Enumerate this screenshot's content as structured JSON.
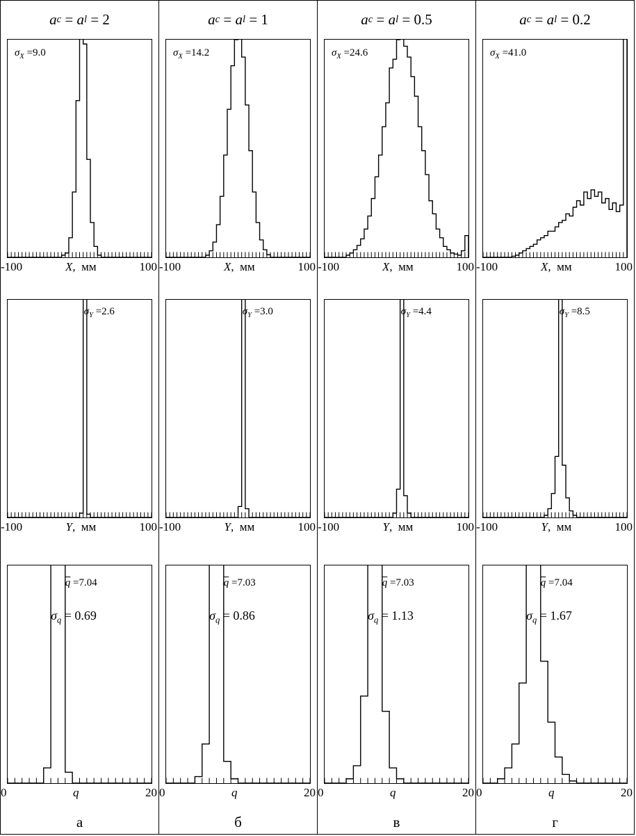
{
  "columns": [
    {
      "header": {
        "var1": "a",
        "sub1": "c",
        "eq": " = ",
        "var2": "a",
        "sub2": "l",
        "rhs": " = 2"
      },
      "letter": "а"
    },
    {
      "header": {
        "var1": "a",
        "sub1": "c",
        "eq": " = ",
        "var2": "a",
        "sub2": "l",
        "rhs": " = 1"
      },
      "letter": "б"
    },
    {
      "header": {
        "var1": "a",
        "sub1": "c",
        "eq": " = ",
        "var2": "a",
        "sub2": "l",
        "rhs": " = 0.5"
      },
      "letter": "в"
    },
    {
      "header": {
        "var1": "a",
        "sub1": "c",
        "eq": " = ",
        "var2": "a",
        "sub2": "l",
        "rhs": " = 0.2"
      },
      "letter": "г"
    }
  ],
  "chart_data": [
    {
      "type": "histogram",
      "row": 1,
      "col": 1,
      "x_range": [
        -100,
        100
      ],
      "bin_width": 5,
      "y_units": "relative (peak clipped at frame top)",
      "counts": [
        0,
        0,
        0,
        0,
        0,
        0,
        0,
        0,
        0,
        0,
        0,
        0,
        0,
        0,
        0,
        0.01,
        0.02,
        0.09,
        0.3,
        0.72,
        1.04,
        0.98,
        0.45,
        0.16,
        0.05,
        0.01,
        0,
        0,
        0,
        0,
        0,
        0,
        0,
        0,
        0,
        0,
        0,
        0,
        0,
        0
      ],
      "stat": {
        "symbol": "σ",
        "sub": "X",
        "value": " =9.0"
      },
      "axis": {
        "left": "-100",
        "var": "X",
        "unit": ",  мм",
        "right": "100"
      }
    },
    {
      "type": "histogram",
      "row": 1,
      "col": 2,
      "x_range": [
        -100,
        100
      ],
      "bin_width": 5,
      "y_units": "relative (peak clipped at frame top)",
      "counts": [
        0,
        0,
        0,
        0,
        0,
        0,
        0,
        0,
        0,
        0,
        0,
        0.01,
        0.03,
        0.07,
        0.15,
        0.28,
        0.47,
        0.68,
        0.88,
        1.0,
        1.04,
        0.92,
        0.7,
        0.49,
        0.3,
        0.16,
        0.08,
        0.035,
        0.012,
        0,
        0,
        0,
        0,
        0,
        0,
        0,
        0,
        0,
        0,
        0
      ],
      "stat": {
        "symbol": "σ",
        "sub": "X",
        "value": " =14.2"
      },
      "axis": {
        "left": "-100",
        "var": "X",
        "unit": ",  мм",
        "right": "100"
      }
    },
    {
      "type": "histogram",
      "row": 1,
      "col": 3,
      "x_range": [
        -100,
        100
      ],
      "bin_width": 5,
      "y_units": "relative (peak clipped at frame top)",
      "counts": [
        0,
        0,
        0,
        0,
        0,
        0,
        0.01,
        0.02,
        0.035,
        0.055,
        0.085,
        0.13,
        0.19,
        0.27,
        0.37,
        0.47,
        0.6,
        0.71,
        0.87,
        0.91,
        1.0,
        1.04,
        0.97,
        0.92,
        0.83,
        0.74,
        0.6,
        0.49,
        0.38,
        0.26,
        0.2,
        0.13,
        0.09,
        0.05,
        0.035,
        0.02,
        0.015,
        0.01,
        0.03,
        0.1
      ],
      "stat": {
        "symbol": "σ",
        "sub": "X",
        "value": " =24.6"
      },
      "axis": {
        "left": "-100",
        "var": "X",
        "unit": ",  мм",
        "right": "100"
      }
    },
    {
      "type": "histogram",
      "row": 1,
      "col": 4,
      "x_range": [
        -100,
        100
      ],
      "bin_width": 5,
      "y_units": "relative (overflow pile-up at +100)",
      "counts": [
        0,
        0,
        0,
        0,
        0,
        0,
        0,
        0,
        0.005,
        0.01,
        0.02,
        0.03,
        0.04,
        0.05,
        0.06,
        0.08,
        0.09,
        0.1,
        0.12,
        0.12,
        0.14,
        0.16,
        0.17,
        0.2,
        0.19,
        0.23,
        0.26,
        0.24,
        0.3,
        0.27,
        0.31,
        0.28,
        0.3,
        0.25,
        0.27,
        0.22,
        0.25,
        0.21,
        0.24,
        1.05
      ],
      "stat": {
        "symbol": "σ",
        "sub": "X",
        "value": " =41.0"
      },
      "axis": {
        "left": "-100",
        "var": "X",
        "unit": ",  мм",
        "right": "100"
      }
    },
    {
      "type": "histogram",
      "row": 2,
      "col": 1,
      "x_range": [
        -100,
        100
      ],
      "bin_width": 5,
      "y_units": "relative (spike clipped at frame top)",
      "counts": [
        0,
        0,
        0,
        0,
        0,
        0,
        0,
        0,
        0,
        0,
        0,
        0,
        0,
        0,
        0,
        0,
        0,
        0,
        0,
        0,
        0.02,
        1.05,
        0.015,
        0,
        0,
        0,
        0,
        0,
        0,
        0,
        0,
        0,
        0,
        0,
        0,
        0,
        0,
        0,
        0,
        0
      ],
      "stat": {
        "symbol": "σ",
        "sub": "Y",
        "value": " =2.6"
      },
      "axis": {
        "left": "-100",
        "var": "Y",
        "unit": ",  мм",
        "right": "100"
      }
    },
    {
      "type": "histogram",
      "row": 2,
      "col": 2,
      "x_range": [
        -100,
        100
      ],
      "bin_width": 5,
      "y_units": "relative (spike clipped at frame top)",
      "counts": [
        0,
        0,
        0,
        0,
        0,
        0,
        0,
        0,
        0,
        0,
        0,
        0,
        0,
        0,
        0,
        0,
        0,
        0,
        0,
        0,
        0.05,
        1.05,
        0.04,
        0,
        0,
        0,
        0,
        0,
        0,
        0,
        0,
        0,
        0,
        0,
        0,
        0,
        0,
        0,
        0,
        0
      ],
      "stat": {
        "symbol": "σ",
        "sub": "Y",
        "value": " =3.0"
      },
      "axis": {
        "left": "-100",
        "var": "Y",
        "unit": ",  мм",
        "right": "100"
      }
    },
    {
      "type": "histogram",
      "row": 2,
      "col": 3,
      "x_range": [
        -100,
        100
      ],
      "bin_width": 5,
      "y_units": "relative (spike clipped at frame top)",
      "counts": [
        0,
        0,
        0,
        0,
        0,
        0,
        0,
        0,
        0,
        0,
        0,
        0,
        0,
        0,
        0,
        0,
        0,
        0,
        0,
        0.02,
        0.13,
        1.05,
        0.1,
        0.02,
        0,
        0,
        0,
        0,
        0,
        0,
        0,
        0,
        0,
        0,
        0,
        0,
        0,
        0,
        0,
        0
      ],
      "stat": {
        "symbol": "σ",
        "sub": "Y",
        "value": " =4.4"
      },
      "axis": {
        "left": "-100",
        "var": "Y",
        "unit": ",  мм",
        "right": "100"
      }
    },
    {
      "type": "histogram",
      "row": 2,
      "col": 4,
      "x_range": [
        -100,
        100
      ],
      "bin_width": 5,
      "y_units": "relative (spike clipped at frame top)",
      "counts": [
        0,
        0,
        0,
        0,
        0,
        0,
        0,
        0,
        0,
        0,
        0,
        0,
        0,
        0,
        0,
        0,
        0,
        0.01,
        0.04,
        0.11,
        0.28,
        1.05,
        0.24,
        0.09,
        0.03,
        0.01,
        0,
        0,
        0,
        0,
        0,
        0,
        0,
        0,
        0,
        0,
        0,
        0,
        0,
        0
      ],
      "stat": {
        "symbol": "σ",
        "sub": "Y",
        "value": " =8.5"
      },
      "axis": {
        "left": "-100",
        "var": "Y",
        "unit": ",  мм",
        "right": "100"
      }
    },
    {
      "type": "histogram",
      "row": 3,
      "col": 1,
      "x_range": [
        0,
        20
      ],
      "bin_width": 1,
      "y_units": "relative (column clipped at frame top)",
      "counts": [
        0,
        0,
        0,
        0,
        0,
        0.07,
        1.05,
        1.05,
        0.05,
        0,
        0,
        0,
        0,
        0,
        0,
        0,
        0,
        0,
        0,
        0
      ],
      "mean": {
        "symbol": "q",
        "value": " =7.04"
      },
      "sigma": {
        "symbol": "σ",
        "sub": "q",
        "value": " = 0.69"
      },
      "axis": {
        "left": "0",
        "var": "q",
        "unit": "",
        "right": "20"
      }
    },
    {
      "type": "histogram",
      "row": 3,
      "col": 2,
      "x_range": [
        0,
        20
      ],
      "bin_width": 1,
      "y_units": "relative (column clipped at frame top)",
      "counts": [
        0,
        0,
        0,
        0,
        0.03,
        0.18,
        1.05,
        1.05,
        0.1,
        0.02,
        0,
        0,
        0,
        0,
        0,
        0,
        0,
        0,
        0,
        0
      ],
      "mean": {
        "symbol": "q",
        "value": " =7.03"
      },
      "sigma": {
        "symbol": "σ",
        "sub": "q",
        "value": " = 0.86"
      },
      "axis": {
        "left": "0",
        "var": "q",
        "unit": "",
        "right": "20"
      }
    },
    {
      "type": "histogram",
      "row": 3,
      "col": 3,
      "x_range": [
        0,
        20
      ],
      "bin_width": 1,
      "y_units": "relative (column clipped at frame top)",
      "counts": [
        0,
        0,
        0,
        0.02,
        0.08,
        0.4,
        1.05,
        1.05,
        0.33,
        0.07,
        0.02,
        0,
        0,
        0,
        0,
        0,
        0,
        0,
        0,
        0
      ],
      "mean": {
        "symbol": "q",
        "value": " =7.03"
      },
      "sigma": {
        "symbol": "σ",
        "sub": "q",
        "value": " = 1.13"
      },
      "axis": {
        "left": "0",
        "var": "q",
        "unit": "",
        "right": "20"
      }
    },
    {
      "type": "histogram",
      "row": 3,
      "col": 4,
      "x_range": [
        0,
        20
      ],
      "bin_width": 1,
      "y_units": "relative (peak at frame top)",
      "counts": [
        0,
        0,
        0.02,
        0.07,
        0.18,
        0.46,
        1.03,
        1.03,
        0.56,
        0.28,
        0.12,
        0.04,
        0.01,
        0,
        0,
        0,
        0,
        0,
        0,
        0
      ],
      "mean": {
        "symbol": "q",
        "value": " =7.04"
      },
      "sigma": {
        "symbol": "σ",
        "sub": "q",
        "value": " = 1.67"
      },
      "axis": {
        "left": "0",
        "var": "q",
        "unit": "",
        "right": "20"
      }
    }
  ]
}
